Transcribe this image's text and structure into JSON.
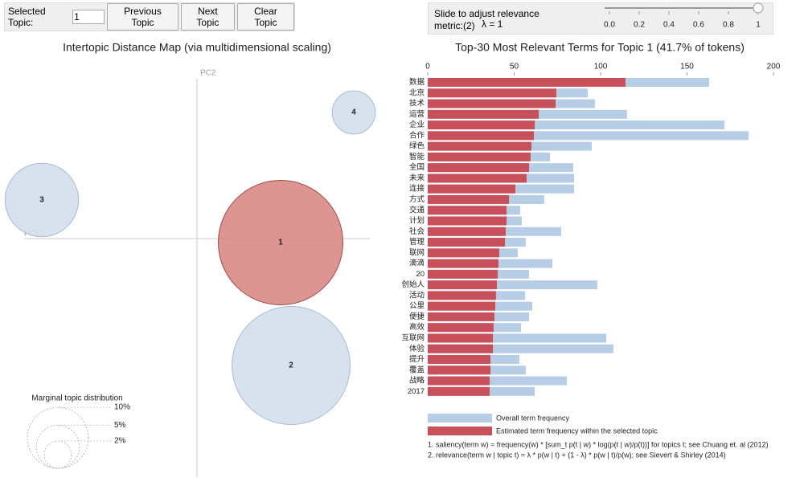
{
  "controls": {
    "topic_label": "Selected Topic:",
    "topic_value": "1",
    "prev": "Previous Topic",
    "next": "Next Topic",
    "clear": "Clear Topic",
    "slider_label": "Slide to adjust relevance metric:(2)",
    "lambda_label": "λ = 1",
    "slider_value": 1,
    "slider_ticks": [
      {
        "value": 0,
        "label": "0.0"
      },
      0.2,
      0.4,
      0.6,
      0.8,
      1
    ]
  },
  "intertopic": {
    "title": "Intertopic Distance Map (via multidimensional scaling)",
    "pc1": "PC1",
    "pc2": "PC2",
    "selected_color": "#d98a86",
    "color": "#d3dfec",
    "topics": [
      {
        "label": "1",
        "pc1": 1.04,
        "pc2": -0.05,
        "size": 41.7
      },
      {
        "label": "2",
        "pc1": 1.17,
        "pc2": -1.58,
        "size": 37.5
      },
      {
        "label": "3",
        "pc1": -1.93,
        "pc2": 0.48,
        "size": 14.5
      },
      {
        "label": "4",
        "pc1": 1.95,
        "pc2": 1.57,
        "size": 5.0
      }
    ],
    "legend_title": "Marginal topic distribution",
    "legend": [
      {
        "label": "2%",
        "value": 2
      },
      {
        "label": "5%",
        "value": 5
      },
      {
        "label": "10%",
        "value": 10
      }
    ]
  },
  "terms": {
    "title": "Top-30 Most Relevant Terms for Topic 1 (41.7% of tokens)",
    "xlim": [
      0,
      200
    ],
    "xticks": [
      0,
      50,
      100,
      150,
      200
    ],
    "overall_color": "#b7cde6",
    "estimated_color": "#c8505a",
    "terms": [
      "数据",
      "北京",
      "技术",
      "运营",
      "企业",
      "合作",
      "绿色",
      "智能",
      "全国",
      "未来",
      "连接",
      "方式",
      "交通",
      "计划",
      "社会",
      "管理",
      "联网",
      "滴滴",
      "20",
      "创始人",
      "活动",
      "公里",
      "便捷",
      "高效",
      "互联网",
      "体验",
      "提升",
      "覆盖",
      "战略",
      "2017"
    ],
    "overall": [
      162.8,
      92.6,
      96.7,
      115.3,
      171.6,
      185.6,
      94.9,
      70.7,
      84.2,
      84.7,
      84.7,
      67.4,
      53.5,
      54.4,
      77.2,
      56.7,
      52.1,
      72.1,
      58.6,
      98.1,
      56.3,
      60.5,
      58.6,
      54.0,
      103.3,
      107.4,
      53.0,
      56.7,
      80.5,
      61.9
    ],
    "estimated": [
      114.4,
      74.4,
      74.0,
      64.2,
      61.9,
      61.4,
      60.0,
      59.5,
      58.6,
      57.2,
      50.7,
      47.0,
      45.6,
      45.6,
      45.1,
      44.7,
      41.4,
      40.9,
      40.5,
      40.0,
      39.5,
      39.1,
      38.6,
      38.1,
      37.7,
      37.7,
      36.3,
      36.3,
      35.8,
      35.8
    ],
    "legend_overall": "Overall term frequency",
    "legend_estimated": "Estimated term frequency within the selected topic",
    "footnote1": "1. saliency(term w) = frequency(w) * [sum_t p(t | w) * log(p(t | w)/p(t))] for topics t; see Chuang et. al (2012)",
    "footnote2": "2. relevance(term w | topic t) = λ * p(w | t) + (1 - λ) * p(w | t)/p(w); see Sievert & Shirley (2014)"
  }
}
